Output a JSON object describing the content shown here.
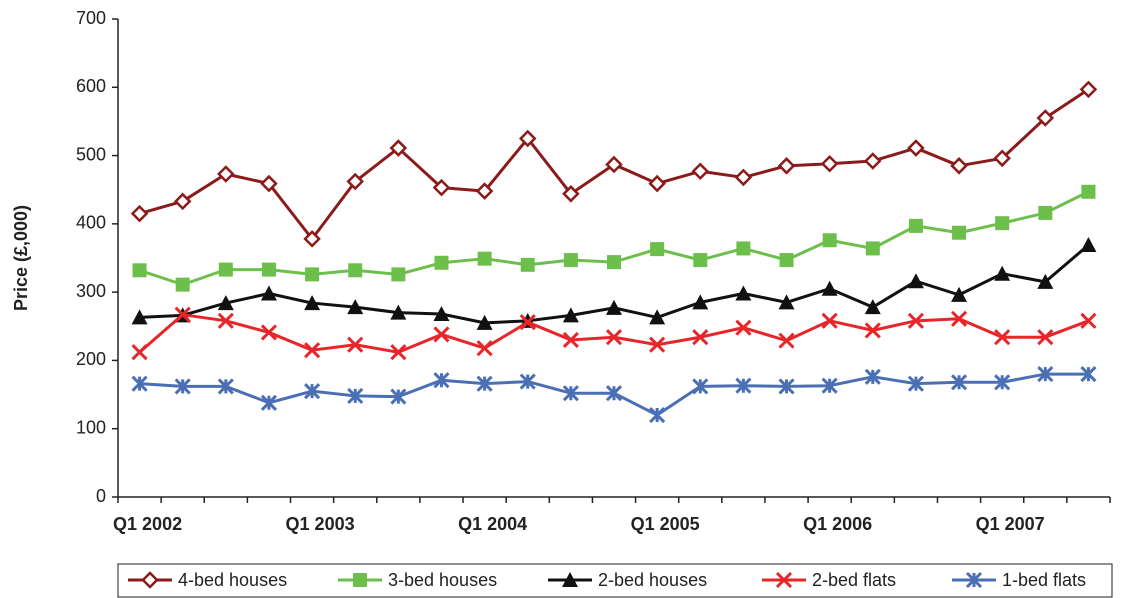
{
  "chart_data": {
    "type": "line",
    "y_label": "Price (£,000)",
    "categories": [
      "Q1 2002",
      null,
      null,
      null,
      "Q1 2003",
      null,
      null,
      null,
      "Q1 2004",
      null,
      null,
      null,
      "Q1 2005",
      null,
      null,
      null,
      "Q1 2006",
      null,
      null,
      null,
      "Q1 2007",
      null,
      null
    ],
    "ylim": [
      0,
      700
    ],
    "yticks": [
      0,
      100,
      200,
      300,
      400,
      500,
      600,
      700
    ],
    "grid": false,
    "legend": "bottom",
    "series": [
      {
        "name": "4-bed houses",
        "color": "#8b1a1a",
        "marker": "diamond-open",
        "values": [
          415,
          433,
          473,
          459,
          378,
          462,
          511,
          453,
          448,
          525,
          444,
          487,
          459,
          477,
          468,
          485,
          488,
          492,
          511,
          485,
          496,
          555,
          597
        ]
      },
      {
        "name": "3-bed houses",
        "color": "#6dbf4b",
        "marker": "square",
        "values": [
          332,
          311,
          333,
          333,
          326,
          332,
          326,
          343,
          349,
          340,
          347,
          344,
          363,
          347,
          364,
          347,
          376,
          364,
          397,
          387,
          401,
          416,
          447
        ]
      },
      {
        "name": "2-bed houses",
        "color": "#111111",
        "marker": "triangle",
        "values": [
          263,
          266,
          284,
          298,
          284,
          278,
          270,
          268,
          255,
          258,
          266,
          277,
          263,
          285,
          298,
          285,
          305,
          278,
          316,
          296,
          327,
          315,
          369
        ]
      },
      {
        "name": "2-bed flats",
        "color": "#e8262a",
        "marker": "x",
        "values": [
          212,
          267,
          258,
          241,
          215,
          223,
          212,
          238,
          218,
          256,
          230,
          234,
          223,
          234,
          248,
          229,
          258,
          244,
          258,
          261,
          234,
          234,
          258
        ]
      },
      {
        "name": "1-bed flats",
        "color": "#4a6fb5",
        "marker": "asterisk",
        "values": [
          166,
          162,
          162,
          138,
          155,
          148,
          147,
          171,
          166,
          169,
          152,
          152,
          120,
          162,
          163,
          162,
          163,
          176,
          166,
          168,
          168,
          180,
          180
        ]
      }
    ]
  }
}
